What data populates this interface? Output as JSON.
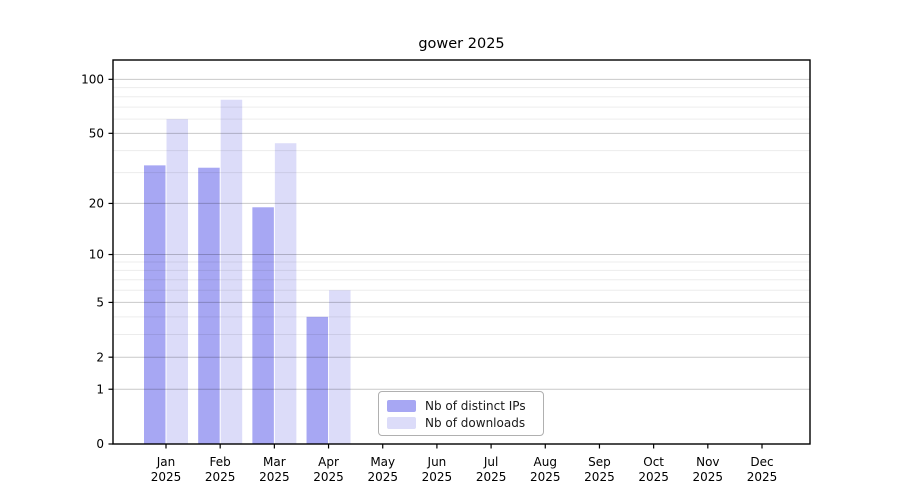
{
  "chart_data": {
    "type": "bar",
    "title": "gower 2025",
    "categories": [
      "Jan",
      "Feb",
      "Mar",
      "Apr",
      "May",
      "Jun",
      "Jul",
      "Aug",
      "Sep",
      "Oct",
      "Nov",
      "Dec"
    ],
    "x_tick_year_suffix": "2025",
    "series": [
      {
        "name": "Nb of distinct IPs",
        "color": "#a7a7f3",
        "values": [
          33,
          32,
          19,
          4,
          0,
          0,
          0,
          0,
          0,
          0,
          0,
          0
        ]
      },
      {
        "name": "Nb of downloads",
        "color": "#dcdcf9",
        "values": [
          60,
          77,
          44,
          6,
          0,
          0,
          0,
          0,
          0,
          0,
          0,
          0
        ]
      }
    ],
    "yscale": "log1p",
    "ylim": [
      0,
      128
    ],
    "y_major_ticks": [
      0,
      1,
      2,
      5,
      10,
      20,
      50,
      100
    ],
    "y_minor_ticks": [
      3,
      4,
      6,
      7,
      8,
      9,
      30,
      40,
      60,
      70,
      80,
      90
    ],
    "grid": "on",
    "legend_position": "lower-center"
  },
  "colors": {
    "background": "#ffffff",
    "axis_frame": "#000000",
    "tick_text": "#000000",
    "major_grid": "rgba(0,0,0,0.21)",
    "minor_grid": "rgba(0,0,0,0.075)",
    "legend_border": "#b0b0b0"
  }
}
